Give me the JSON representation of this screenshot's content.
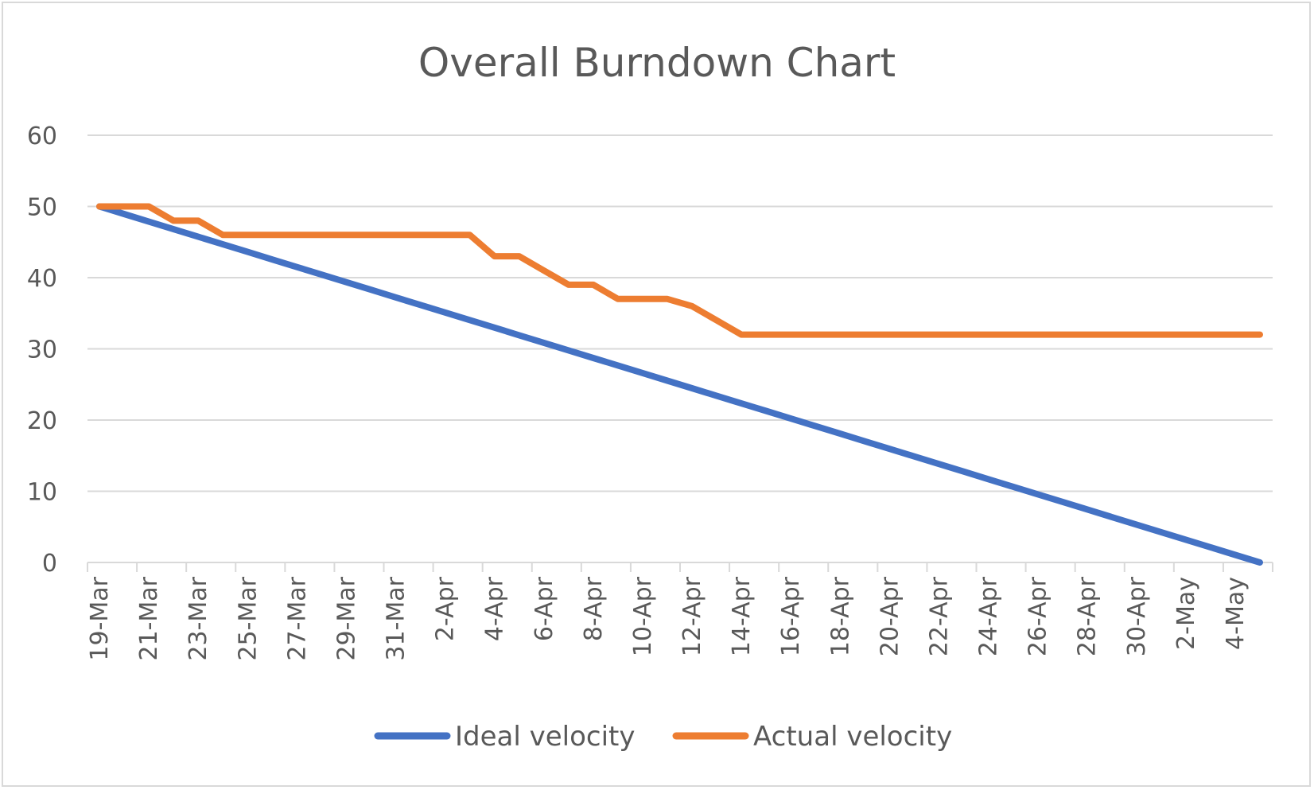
{
  "chart_data": {
    "type": "line",
    "title": "Overall Burndown Chart",
    "xlabel": "",
    "ylabel": "",
    "ylim": [
      0,
      60
    ],
    "yticks": [
      "0",
      "10",
      "20",
      "30",
      "40",
      "50",
      "60"
    ],
    "grid": true,
    "legend_position": "bottom",
    "categories": [
      "19-Mar",
      "20-Mar",
      "21-Mar",
      "22-Mar",
      "23-Mar",
      "24-Mar",
      "25-Mar",
      "26-Mar",
      "27-Mar",
      "28-Mar",
      "29-Mar",
      "30-Mar",
      "31-Mar",
      "1-Apr",
      "2-Apr",
      "3-Apr",
      "4-Apr",
      "5-Apr",
      "6-Apr",
      "7-Apr",
      "8-Apr",
      "9-Apr",
      "10-Apr",
      "11-Apr",
      "12-Apr",
      "13-Apr",
      "14-Apr",
      "15-Apr",
      "16-Apr",
      "17-Apr",
      "18-Apr",
      "19-Apr",
      "20-Apr",
      "21-Apr",
      "22-Apr",
      "23-Apr",
      "24-Apr",
      "25-Apr",
      "26-Apr",
      "27-Apr",
      "28-Apr",
      "29-Apr",
      "30-Apr",
      "1-May",
      "2-May",
      "3-May",
      "4-May",
      "5-May"
    ],
    "tick_labels": [
      "19-Mar",
      "21-Mar",
      "23-Mar",
      "25-Mar",
      "27-Mar",
      "29-Mar",
      "31-Mar",
      "2-Apr",
      "4-Apr",
      "6-Apr",
      "8-Apr",
      "10-Apr",
      "12-Apr",
      "14-Apr",
      "16-Apr",
      "18-Apr",
      "20-Apr",
      "22-Apr",
      "24-Apr",
      "26-Apr",
      "28-Apr",
      "30-Apr",
      "2-May",
      "4-May"
    ],
    "series": [
      {
        "name": "Ideal velocity",
        "color": "#4472c4",
        "values": [
          50,
          48.94,
          47.87,
          46.81,
          45.74,
          44.68,
          43.62,
          42.55,
          41.49,
          40.43,
          39.36,
          38.3,
          37.23,
          36.17,
          35.11,
          34.04,
          32.98,
          31.91,
          30.85,
          29.79,
          28.72,
          27.66,
          26.6,
          25.53,
          24.47,
          23.4,
          22.34,
          21.28,
          20.21,
          19.15,
          18.09,
          17.02,
          15.96,
          14.89,
          13.83,
          12.77,
          11.7,
          10.64,
          9.57,
          8.51,
          7.45,
          6.38,
          5.32,
          4.26,
          3.19,
          2.13,
          1.06,
          0
        ]
      },
      {
        "name": "Actual velocity",
        "color": "#ed7d31",
        "values": [
          50,
          50,
          50,
          48,
          48,
          46,
          46,
          46,
          46,
          46,
          46,
          46,
          46,
          46,
          46,
          46,
          43,
          43,
          41,
          39,
          39,
          37,
          37,
          37,
          36,
          34,
          32,
          32,
          32,
          32,
          32,
          32,
          32,
          32,
          32,
          32,
          32,
          32,
          32,
          32,
          32,
          32,
          32,
          32,
          32,
          32,
          32,
          32
        ]
      }
    ]
  }
}
